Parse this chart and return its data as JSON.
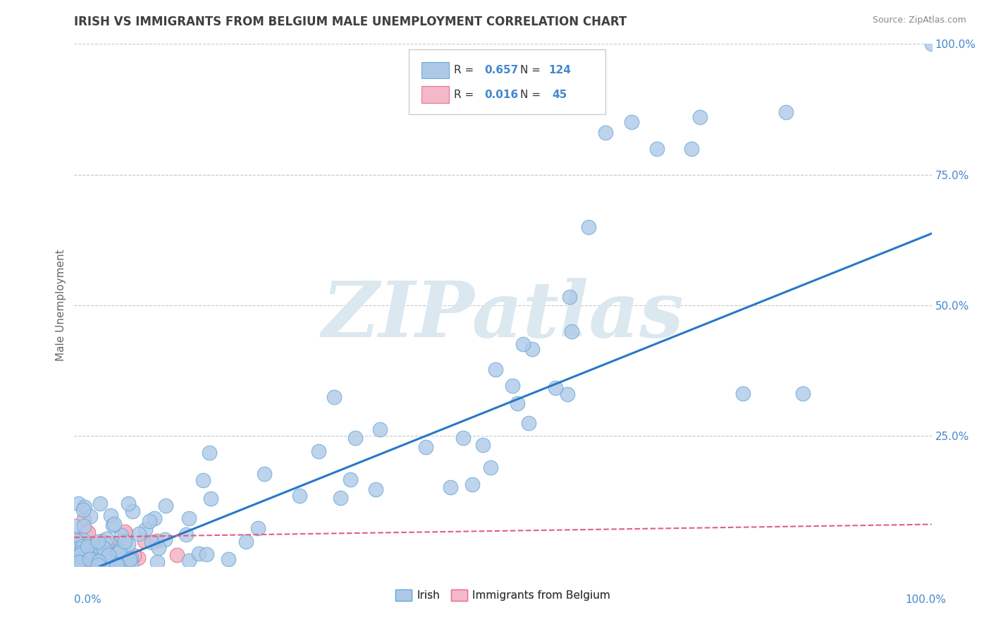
{
  "title": "IRISH VS IMMIGRANTS FROM BELGIUM MALE UNEMPLOYMENT CORRELATION CHART",
  "source": "Source: ZipAtlas.com",
  "ylabel": "Male Unemployment",
  "legend_irish_label": "Irish",
  "legend_belgium_label": "Immigrants from Belgium",
  "irish_R": "0.657",
  "irish_N": "124",
  "belgium_R": "0.016",
  "belgium_N": "45",
  "irish_color": "#aec9e8",
  "irish_edge_color": "#6aaad4",
  "belgium_color": "#f5b8c8",
  "belgium_edge_color": "#e87090",
  "trend_irish_color": "#2878c8",
  "trend_belgium_color": "#e06080",
  "background_color": "#ffffff",
  "grid_color": "#c8c8c8",
  "title_color": "#404040",
  "source_color": "#888888",
  "axis_label_color": "#4488cc",
  "legend_R_label_color": "#333333",
  "legend_N_color": "#4488cc",
  "watermark_color": "#dce8f0",
  "watermark_text": "ZIPatlas",
  "trend_slope_irish": 0.657,
  "trend_intercept_irish": -0.02,
  "trend_slope_belgium": 0.025,
  "trend_intercept_belgium": 0.055,
  "xlim": [
    0.0,
    1.0
  ],
  "ylim": [
    0.0,
    1.0
  ],
  "yticks": [
    0.25,
    0.5,
    0.75,
    1.0
  ],
  "ytick_labels": [
    "25.0%",
    "50.0%",
    "75.0%",
    "100.0%"
  ]
}
